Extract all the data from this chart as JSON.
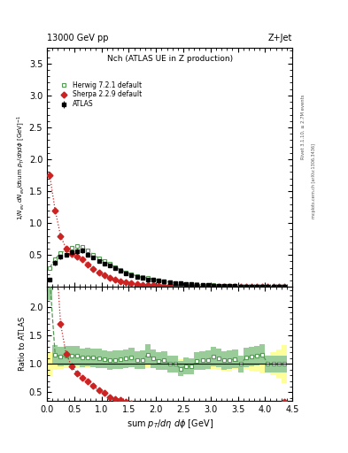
{
  "title_top_left": "13000 GeV pp",
  "title_top_right": "Z+Jet",
  "plot_title": "Nch (ATLAS UE in Z production)",
  "xlabel": "sum p_{T}/d\\eta d\\phi [GeV]",
  "ylabel_main": "1/N_{ev} dN_{ev}/dsum p_{T}/d\\eta d\\phi [GeV]^{-1}",
  "ylabel_ratio": "Ratio to ATLAS",
  "right_label1": "Rivet 3.1.10, ≥ 2.7M events",
  "right_label2": "mcplots.cern.ch [arXiv:1306.3436]",
  "ylim_main": [
    0,
    3.75
  ],
  "ylim_ratio": [
    0.35,
    2.35
  ],
  "xlim": [
    0.0,
    4.5
  ],
  "bin_edges": [
    0.0,
    0.1,
    0.2,
    0.3,
    0.4,
    0.5,
    0.6,
    0.7,
    0.8,
    0.9,
    1.0,
    1.1,
    1.2,
    1.3,
    1.4,
    1.5,
    1.6,
    1.7,
    1.8,
    1.9,
    2.0,
    2.1,
    2.2,
    2.3,
    2.4,
    2.5,
    2.6,
    2.7,
    2.8,
    2.9,
    3.0,
    3.1,
    3.2,
    3.3,
    3.4,
    3.5,
    3.6,
    3.7,
    3.8,
    3.9,
    4.0,
    4.1,
    4.2,
    4.3,
    4.4
  ],
  "atlas_y": [
    0.12,
    0.38,
    0.47,
    0.51,
    0.54,
    0.56,
    0.57,
    0.51,
    0.46,
    0.41,
    0.37,
    0.34,
    0.29,
    0.25,
    0.21,
    0.18,
    0.16,
    0.14,
    0.12,
    0.11,
    0.095,
    0.085,
    0.075,
    0.065,
    0.06,
    0.052,
    0.047,
    0.038,
    0.033,
    0.028,
    0.023,
    0.02,
    0.017,
    0.014,
    0.012,
    0.011,
    0.009,
    0.008,
    0.007,
    0.006,
    0.006,
    0.005,
    0.004,
    0.003
  ],
  "atlas_err_up": [
    0.025,
    0.04,
    0.04,
    0.04,
    0.04,
    0.04,
    0.04,
    0.035,
    0.03,
    0.025,
    0.022,
    0.02,
    0.018,
    0.015,
    0.013,
    0.011,
    0.01,
    0.009,
    0.008,
    0.008,
    0.007,
    0.006,
    0.005,
    0.005,
    0.005,
    0.004,
    0.004,
    0.003,
    0.003,
    0.003,
    0.002,
    0.002,
    0.002,
    0.002,
    0.001,
    0.001,
    0.001,
    0.001,
    0.001,
    0.001,
    0.001,
    0.001,
    0.001,
    0.001
  ],
  "herwig_y": [
    0.3,
    0.44,
    0.53,
    0.58,
    0.62,
    0.64,
    0.63,
    0.57,
    0.51,
    0.45,
    0.4,
    0.36,
    0.31,
    0.27,
    0.23,
    0.2,
    0.17,
    0.15,
    0.14,
    0.12,
    0.1,
    0.09,
    0.075,
    0.065,
    0.055,
    0.05,
    0.045,
    0.04,
    0.035,
    0.03,
    0.026,
    0.022,
    0.018,
    0.015,
    0.013,
    0.011,
    0.01,
    0.009,
    0.008,
    0.007,
    0.006,
    0.005,
    0.004,
    0.003
  ],
  "sherpa_y": [
    1.75,
    1.2,
    0.8,
    0.6,
    0.52,
    0.47,
    0.43,
    0.35,
    0.28,
    0.22,
    0.18,
    0.14,
    0.11,
    0.09,
    0.07,
    0.055,
    0.045,
    0.038,
    0.032,
    0.026,
    0.022,
    0.018,
    0.015,
    0.013,
    0.011,
    0.009,
    0.008,
    0.007,
    0.006,
    0.005,
    0.004,
    0.003,
    0.003,
    0.002,
    0.002,
    0.002,
    0.001,
    0.001,
    0.001,
    0.001,
    0.001,
    0.001,
    0.001,
    0.001
  ],
  "atlas_color": "#000000",
  "herwig_color": "#559955",
  "sherpa_color": "#cc2222",
  "herwig_line_color": "#88bb88",
  "atlas_band_color": "#ffff99",
  "herwig_band_color": "#99cc99",
  "ratio_yticks": [
    0.5,
    1.0,
    1.5,
    2.0
  ],
  "main_yticks": [
    0.5,
    1.0,
    1.5,
    2.0,
    2.5,
    3.0,
    3.5
  ]
}
